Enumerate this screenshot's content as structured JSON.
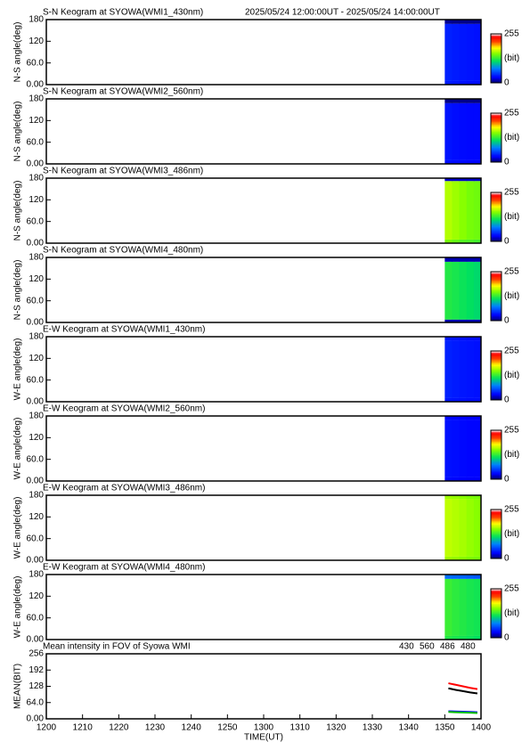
{
  "chart_data": [
    {
      "type": "heatmap",
      "title": "S-N Keogram at SYOWA(WMI1_430nm)",
      "subtitle": "2025/05/24 12:00:00UT - 2025/05/24 14:00:00UT",
      "ylabel": "N-S angle(deg)",
      "xlim": [
        0,
        120
      ],
      "ylim": [
        0,
        180
      ],
      "yticks": [
        {
          "value": 0,
          "label": "0.00"
        },
        {
          "value": 60,
          "label": "60.0"
        },
        120,
        180
      ],
      "xbins": [
        110,
        112,
        114,
        116,
        118,
        120
      ],
      "ybins": [
        0,
        10,
        168,
        180
      ],
      "values": [
        [
          40,
          38,
          36,
          35,
          35
        ],
        [
          42,
          40,
          38,
          37,
          36
        ],
        [
          10,
          8,
          8,
          8,
          8
        ]
      ],
      "colorbar": {
        "lim": [
          0,
          255
        ],
        "ticks": [
          0,
          255
        ],
        "label": "(bit)"
      }
    },
    {
      "type": "heatmap",
      "title": "S-N Keogram at SYOWA(WMI2_560nm)",
      "ylabel": "N-S angle(deg)",
      "xlim": [
        0,
        120
      ],
      "ylim": [
        0,
        180
      ],
      "yticks": [
        {
          "value": 0,
          "label": "0.00"
        },
        {
          "value": 60,
          "label": "60.0"
        },
        120,
        180
      ],
      "xbins": [
        110,
        112,
        114,
        116,
        118,
        120
      ],
      "ybins": [
        0,
        10,
        168,
        180
      ],
      "values": [
        [
          35,
          34,
          33,
          32,
          32
        ],
        [
          37,
          35,
          34,
          33,
          33
        ],
        [
          8,
          8,
          8,
          8,
          8
        ]
      ],
      "colorbar": {
        "lim": [
          0,
          255
        ],
        "ticks": [
          0,
          255
        ],
        "label": "(bit)"
      }
    },
    {
      "type": "heatmap",
      "title": "S-N Keogram at SYOWA(WMI3_486nm)",
      "ylabel": "N-S angle(deg)",
      "xlim": [
        0,
        120
      ],
      "ylim": [
        0,
        180
      ],
      "yticks": [
        {
          "value": 0,
          "label": "0.00"
        },
        {
          "value": 60,
          "label": "60.0"
        },
        120,
        180
      ],
      "xbins": [
        110,
        112,
        114,
        116,
        118,
        120
      ],
      "ybins": [
        0,
        10,
        172,
        180
      ],
      "values": [
        [
          150,
          145,
          140,
          138,
          135
        ],
        [
          165,
          160,
          155,
          150,
          148
        ],
        [
          20,
          20,
          20,
          20,
          20
        ]
      ],
      "colorbar": {
        "lim": [
          0,
          255
        ],
        "ticks": [
          0,
          255
        ],
        "label": "(bit)"
      }
    },
    {
      "type": "heatmap",
      "title": "S-N Keogram at SYOWA(WMI4_480nm)",
      "ylabel": "N-S angle(deg)",
      "xlim": [
        0,
        120
      ],
      "ylim": [
        0,
        180
      ],
      "yticks": [
        {
          "value": 0,
          "label": "0.00"
        },
        {
          "value": 60,
          "label": "60.0"
        },
        120,
        180
      ],
      "xbins": [
        110,
        112,
        114,
        116,
        118,
        120
      ],
      "ybins": [
        0,
        8,
        168,
        180
      ],
      "values": [
        [
          15,
          15,
          15,
          15,
          15
        ],
        [
          125,
          122,
          118,
          115,
          112
        ],
        [
          15,
          15,
          15,
          15,
          15
        ]
      ],
      "colorbar": {
        "lim": [
          0,
          255
        ],
        "ticks": [
          0,
          255
        ],
        "label": "(bit)"
      }
    },
    {
      "type": "heatmap",
      "title": "E-W Keogram at SYOWA(WMI1_430nm)",
      "ylabel": "W-E angle(deg)",
      "xlim": [
        0,
        120
      ],
      "ylim": [
        0,
        180
      ],
      "yticks": [
        {
          "value": 0,
          "label": "0.00"
        },
        {
          "value": 60,
          "label": "60.0"
        },
        120,
        180
      ],
      "xbins": [
        110,
        112,
        114,
        116,
        118,
        120
      ],
      "ybins": [
        0,
        10,
        170,
        180
      ],
      "values": [
        [
          38,
          37,
          36,
          35,
          35
        ],
        [
          42,
          40,
          38,
          37,
          36
        ],
        [
          38,
          37,
          36,
          35,
          35
        ]
      ],
      "colorbar": {
        "lim": [
          0,
          255
        ],
        "ticks": [
          0,
          255
        ],
        "label": "(bit)"
      }
    },
    {
      "type": "heatmap",
      "title": "E-W Keogram at SYOWA(WMI2_560nm)",
      "ylabel": "W-E angle(deg)",
      "xlim": [
        0,
        120
      ],
      "ylim": [
        0,
        180
      ],
      "yticks": [
        {
          "value": 0,
          "label": "0.00"
        },
        {
          "value": 60,
          "label": "60.0"
        },
        120,
        180
      ],
      "xbins": [
        110,
        112,
        114,
        116,
        118,
        120
      ],
      "ybins": [
        0,
        10,
        170,
        180
      ],
      "values": [
        [
          33,
          32,
          31,
          30,
          30
        ],
        [
          36,
          35,
          33,
          32,
          32
        ],
        [
          33,
          32,
          31,
          30,
          30
        ]
      ],
      "colorbar": {
        "lim": [
          0,
          255
        ],
        "ticks": [
          0,
          255
        ],
        "label": "(bit)"
      }
    },
    {
      "type": "heatmap",
      "title": "E-W Keogram at SYOWA(WMI3_486nm)",
      "ylabel": "W-E angle(deg)",
      "xlim": [
        0,
        120
      ],
      "ylim": [
        0,
        180
      ],
      "yticks": [
        {
          "value": 0,
          "label": "0.00"
        },
        {
          "value": 60,
          "label": "60.0"
        },
        120,
        180
      ],
      "xbins": [
        110,
        112,
        114,
        116,
        118,
        120
      ],
      "ybins": [
        0,
        10,
        170,
        180
      ],
      "values": [
        [
          160,
          158,
          155,
          152,
          150
        ],
        [
          168,
          165,
          162,
          158,
          155
        ],
        [
          160,
          158,
          155,
          152,
          150
        ]
      ],
      "colorbar": {
        "lim": [
          0,
          255
        ],
        "ticks": [
          0,
          255
        ],
        "label": "(bit)"
      }
    },
    {
      "type": "heatmap",
      "title": "E-W Keogram at SYOWA(WMI4_480nm)",
      "ylabel": "W-E angle(deg)",
      "xlim": [
        0,
        120
      ],
      "ylim": [
        0,
        180
      ],
      "yticks": [
        {
          "value": 0,
          "label": "0.00"
        },
        {
          "value": 60,
          "label": "60.0"
        },
        120,
        180
      ],
      "xbins": [
        110,
        112,
        114,
        116,
        118,
        120
      ],
      "ybins": [
        0,
        10,
        168,
        180
      ],
      "values": [
        [
          125,
          122,
          120,
          118,
          115
        ],
        [
          132,
          128,
          125,
          122,
          120
        ],
        [
          70,
          68,
          66,
          64,
          62
        ]
      ],
      "colorbar": {
        "lim": [
          0,
          255
        ],
        "ticks": [
          0,
          255
        ],
        "label": "(bit)"
      }
    },
    {
      "type": "line",
      "title": "Mean intensity in FOV of Syowa WMI",
      "ylabel": "MEAN(BIT)",
      "xlabel": "TIME(UT)",
      "xlim": [
        0,
        120
      ],
      "ylim": [
        0,
        256
      ],
      "yticks": [
        {
          "value": 0,
          "label": "0.00"
        },
        {
          "value": 64,
          "label": "64.0"
        },
        128,
        192,
        256
      ],
      "xticks": [
        {
          "value": 0,
          "label": "1200"
        },
        {
          "value": 10,
          "label": "1210"
        },
        {
          "value": 20,
          "label": "1220"
        },
        {
          "value": 30,
          "label": "1230"
        },
        {
          "value": 40,
          "label": "1240"
        },
        {
          "value": 50,
          "label": "1250"
        },
        {
          "value": 60,
          "label": "1300"
        },
        {
          "value": 70,
          "label": "1310"
        },
        {
          "value": 80,
          "label": "1320"
        },
        {
          "value": 90,
          "label": "1330"
        },
        {
          "value": 100,
          "label": "1340"
        },
        {
          "value": 110,
          "label": "1350"
        },
        {
          "value": 120,
          "label": "1400"
        }
      ],
      "x": [
        111,
        113,
        115,
        117,
        119
      ],
      "series": [
        {
          "name": "430",
          "color": "#0000ff",
          "values": [
            30,
            29,
            28,
            27,
            26
          ]
        },
        {
          "name": "560",
          "color": "#00c000",
          "values": [
            27,
            26,
            25,
            24,
            23
          ]
        },
        {
          "name": "486",
          "color": "#ff0000",
          "values": [
            140,
            134,
            128,
            122,
            117
          ]
        },
        {
          "name": "480",
          "color": "#000000",
          "values": [
            120,
            114,
            109,
            104,
            100
          ]
        }
      ]
    }
  ]
}
